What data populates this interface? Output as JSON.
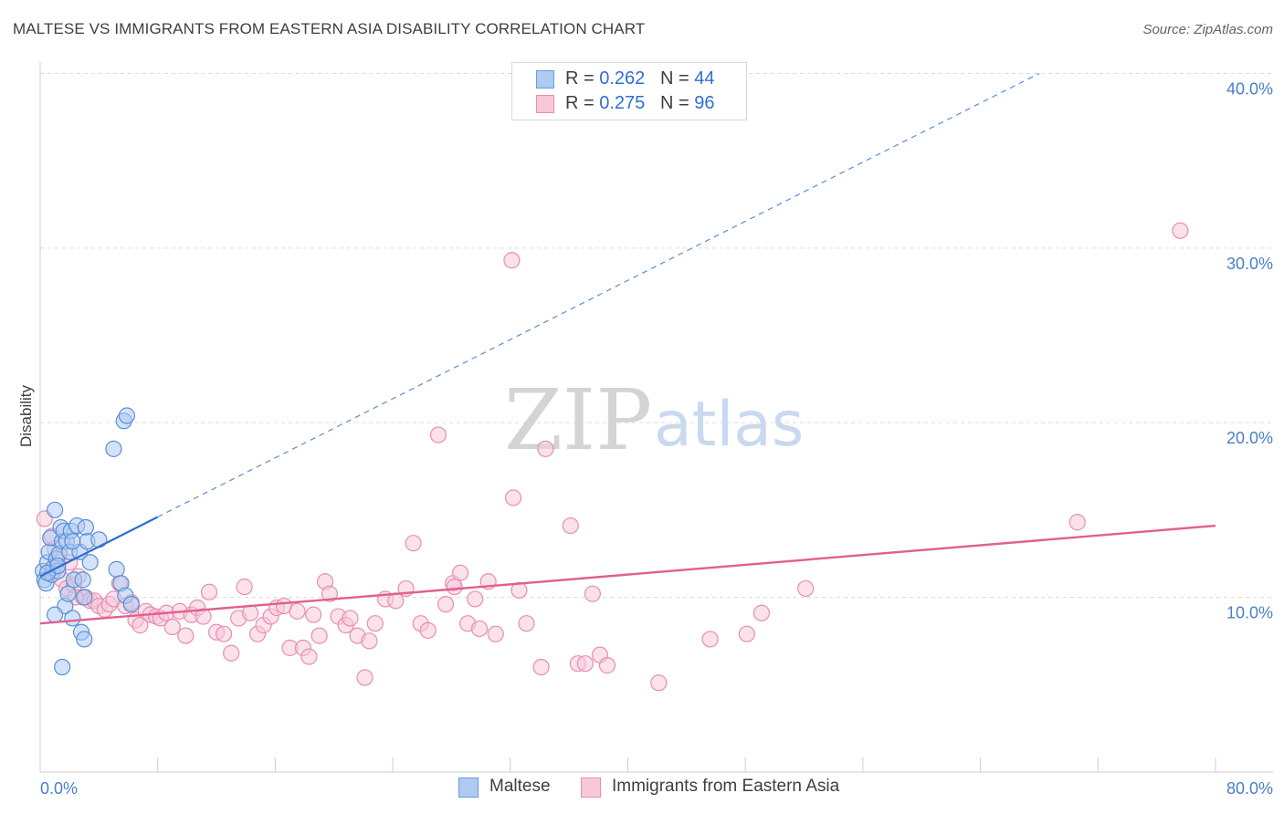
{
  "header": {
    "title": "MALTESE VS IMMIGRANTS FROM EASTERN ASIA DISABILITY CORRELATION CHART",
    "source": "Source: ZipAtlas.com"
  },
  "watermark": {
    "part1": "ZIP",
    "part2": "atlas"
  },
  "legend": {
    "rows": [
      {
        "r_label": "R = ",
        "r_value": "0.262",
        "n_label": "N = ",
        "n_value": "44",
        "color": "#aecbf2",
        "border": "#6b9bd8"
      },
      {
        "r_label": "R = ",
        "r_value": "0.275",
        "n_label": "N = ",
        "n_value": "96",
        "color": "#f8c8d8",
        "border": "#e68fae"
      }
    ]
  },
  "bottom_legend": [
    {
      "label": "Maltese",
      "color": "#aecbf2",
      "border": "#6b9bd8"
    },
    {
      "label": "Immigrants from Eastern Asia",
      "color": "#f8c8d8",
      "border": "#e68fae"
    }
  ],
  "chart_data": {
    "type": "scatter",
    "title": "MALTESE VS IMMIGRANTS FROM EASTERN ASIA DISABILITY CORRELATION CHART",
    "xlabel": "",
    "ylabel": "Disability",
    "xlim": [
      0,
      80
    ],
    "ylim": [
      0,
      42
    ],
    "x_tick_labels": [
      "0.0%",
      "80.0%"
    ],
    "y_ticks": [
      10,
      20,
      30,
      40
    ],
    "y_tick_labels": [
      "10.0%",
      "20.0%",
      "30.0%",
      "40.0%"
    ],
    "grid": true,
    "colors": {
      "maltese": "#4a86d6",
      "eastern_asia": "#e57aa0"
    },
    "series": [
      {
        "name": "Maltese",
        "fill": "#aecbf2",
        "stroke": "#5b8fd6",
        "line_color": "#2f6fd0",
        "trend": {
          "x": [
            0,
            8
          ],
          "y": [
            11.2,
            14.6
          ],
          "dashed_extension_to": [
            68,
            40
          ]
        },
        "points": [
          [
            0.2,
            11.5
          ],
          [
            0.3,
            11.0
          ],
          [
            0.4,
            10.8
          ],
          [
            0.5,
            12.0
          ],
          [
            0.6,
            12.6
          ],
          [
            0.7,
            13.4
          ],
          [
            0.8,
            11.3
          ],
          [
            0.9,
            11.7
          ],
          [
            1.0,
            15.0
          ],
          [
            1.1,
            12.2
          ],
          [
            1.2,
            11.5
          ],
          [
            1.3,
            12.5
          ],
          [
            1.4,
            14.0
          ],
          [
            1.5,
            13.2
          ],
          [
            1.6,
            13.8
          ],
          [
            1.7,
            9.5
          ],
          [
            1.8,
            13.2
          ],
          [
            1.9,
            10.2
          ],
          [
            2.0,
            12.6
          ],
          [
            2.1,
            13.8
          ],
          [
            2.2,
            8.8
          ],
          [
            2.3,
            11.0
          ],
          [
            2.5,
            14.1
          ],
          [
            2.7,
            12.6
          ],
          [
            2.8,
            8.0
          ],
          [
            2.9,
            11.0
          ],
          [
            3.0,
            7.6
          ],
          [
            3.0,
            10.0
          ],
          [
            3.1,
            14.0
          ],
          [
            3.2,
            13.2
          ],
          [
            3.4,
            12.0
          ],
          [
            4.0,
            13.3
          ],
          [
            5.0,
            18.5
          ],
          [
            5.2,
            11.6
          ],
          [
            5.5,
            10.8
          ],
          [
            5.7,
            20.1
          ],
          [
            5.9,
            20.4
          ],
          [
            5.8,
            10.1
          ],
          [
            6.2,
            9.6
          ],
          [
            1.5,
            6.0
          ],
          [
            2.2,
            13.2
          ],
          [
            1.0,
            9.0
          ],
          [
            0.5,
            11.4
          ],
          [
            1.2,
            11.8
          ]
        ]
      },
      {
        "name": "Immigrants from Eastern Asia",
        "fill": "#f8c8d8",
        "stroke": "#e68fae",
        "line_color": "#e0608c",
        "trend": {
          "x": [
            0,
            80
          ],
          "y": [
            8.5,
            14.1
          ]
        },
        "points": [
          [
            0.3,
            14.5
          ],
          [
            0.8,
            13.5
          ],
          [
            1.0,
            12.8
          ],
          [
            1.2,
            12.2
          ],
          [
            1.5,
            11.0
          ],
          [
            1.8,
            10.5
          ],
          [
            2.0,
            12.0
          ],
          [
            2.3,
            10.7
          ],
          [
            2.6,
            11.2
          ],
          [
            2.9,
            10.0
          ],
          [
            3.1,
            10.0
          ],
          [
            3.4,
            9.8
          ],
          [
            3.7,
            9.8
          ],
          [
            4.0,
            9.5
          ],
          [
            4.4,
            9.3
          ],
          [
            4.7,
            9.6
          ],
          [
            5.0,
            9.9
          ],
          [
            5.4,
            10.8
          ],
          [
            5.8,
            9.5
          ],
          [
            6.2,
            9.7
          ],
          [
            6.5,
            8.7
          ],
          [
            6.8,
            8.4
          ],
          [
            7.2,
            9.2
          ],
          [
            7.5,
            9.0
          ],
          [
            7.9,
            8.9
          ],
          [
            8.2,
            8.8
          ],
          [
            8.6,
            9.1
          ],
          [
            9.0,
            8.3
          ],
          [
            9.5,
            9.2
          ],
          [
            9.9,
            7.8
          ],
          [
            10.3,
            9.0
          ],
          [
            10.7,
            9.4
          ],
          [
            11.1,
            8.9
          ],
          [
            11.5,
            10.3
          ],
          [
            12.0,
            8.0
          ],
          [
            12.5,
            7.9
          ],
          [
            13.0,
            6.8
          ],
          [
            13.5,
            8.8
          ],
          [
            13.9,
            10.6
          ],
          [
            14.3,
            9.1
          ],
          [
            14.8,
            7.9
          ],
          [
            15.2,
            8.4
          ],
          [
            15.7,
            8.9
          ],
          [
            16.1,
            9.4
          ],
          [
            16.6,
            9.5
          ],
          [
            17.0,
            7.1
          ],
          [
            17.5,
            9.2
          ],
          [
            17.9,
            7.1
          ],
          [
            18.3,
            6.6
          ],
          [
            18.6,
            9.0
          ],
          [
            19.0,
            7.8
          ],
          [
            19.4,
            10.9
          ],
          [
            19.7,
            10.2
          ],
          [
            20.3,
            8.9
          ],
          [
            20.8,
            8.4
          ],
          [
            21.1,
            8.8
          ],
          [
            21.6,
            7.8
          ],
          [
            22.1,
            5.4
          ],
          [
            22.4,
            7.5
          ],
          [
            22.8,
            8.5
          ],
          [
            23.5,
            9.9
          ],
          [
            24.2,
            9.8
          ],
          [
            24.9,
            10.5
          ],
          [
            25.4,
            13.1
          ],
          [
            25.9,
            8.5
          ],
          [
            26.4,
            8.1
          ],
          [
            27.1,
            19.3
          ],
          [
            27.6,
            9.6
          ],
          [
            28.1,
            10.8
          ],
          [
            28.6,
            11.4
          ],
          [
            28.2,
            10.6
          ],
          [
            29.1,
            8.5
          ],
          [
            29.6,
            9.9
          ],
          [
            29.9,
            8.2
          ],
          [
            30.5,
            10.9
          ],
          [
            31.0,
            7.9
          ],
          [
            32.1,
            29.3
          ],
          [
            32.2,
            15.7
          ],
          [
            32.6,
            10.4
          ],
          [
            33.1,
            8.5
          ],
          [
            34.1,
            6.0
          ],
          [
            34.4,
            18.5
          ],
          [
            36.1,
            14.1
          ],
          [
            36.6,
            6.2
          ],
          [
            37.1,
            6.2
          ],
          [
            37.6,
            10.2
          ],
          [
            38.1,
            6.7
          ],
          [
            38.6,
            6.1
          ],
          [
            42.1,
            5.1
          ],
          [
            45.6,
            7.6
          ],
          [
            48.1,
            7.9
          ],
          [
            49.1,
            9.1
          ],
          [
            52.1,
            10.5
          ],
          [
            70.6,
            14.3
          ],
          [
            77.6,
            31.0
          ],
          [
            2.4,
            10.0
          ]
        ]
      }
    ]
  }
}
